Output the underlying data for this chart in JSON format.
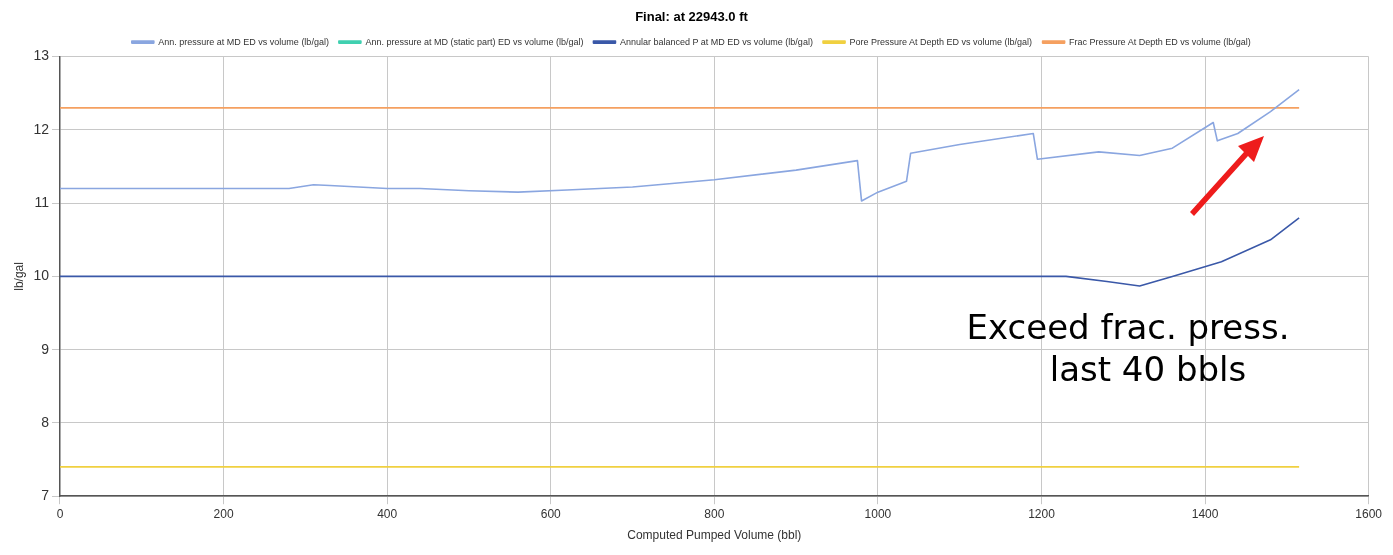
{
  "chart_data": {
    "type": "line",
    "title": "Final: at 22943.0 ft",
    "xlabel": "Computed Pumped Volume (bbl)",
    "ylabel": "lb/gal",
    "xlim": [
      0,
      1600
    ],
    "xticks": [
      0,
      200,
      400,
      600,
      800,
      1000,
      1200,
      1400,
      1600
    ],
    "ylim": [
      7,
      13
    ],
    "yticks": [
      7,
      8,
      9,
      10,
      11,
      12,
      13
    ],
    "grid": true,
    "legend": "top",
    "marker": "none",
    "line_style": "solid",
    "series": [
      {
        "name": "Ann. pressure at MD ED vs volume (lb/gal)",
        "color": "#8aa6e0",
        "x": [
          0,
          280,
          310,
          330,
          400,
          440,
          500,
          560,
          620,
          700,
          800,
          900,
          975,
          980,
          1000,
          1035,
          1040,
          1100,
          1190,
          1195,
          1270,
          1320,
          1360,
          1410,
          1415,
          1440,
          1480,
          1515
        ],
        "values": [
          11.2,
          11.2,
          11.25,
          11.24,
          11.2,
          11.2,
          11.17,
          11.15,
          11.18,
          11.22,
          11.32,
          11.45,
          11.58,
          11.03,
          11.15,
          11.3,
          11.68,
          11.8,
          11.95,
          11.6,
          11.7,
          11.65,
          11.75,
          12.1,
          11.85,
          11.95,
          12.25,
          12.55
        ]
      },
      {
        "name": "Ann. pressure at MD (static part) ED vs volume (lb/gal)",
        "color": "#40d0b0"
      },
      {
        "name": "Annular balanced P at MD ED vs volume (lb/gal)",
        "color": "#3a58a8",
        "x": [
          0,
          1230,
          1280,
          1320,
          1360,
          1420,
          1480,
          1515
        ],
        "values": [
          10,
          10,
          9.93,
          9.87,
          10.0,
          10.2,
          10.5,
          10.8
        ]
      },
      {
        "name": "Pore Pressure At Depth ED vs volume (lb/gal)",
        "color": "#f0d040",
        "x": [
          0,
          1515
        ],
        "values": [
          7.4,
          7.4
        ]
      },
      {
        "name": "Frac Pressure At Depth ED vs volume (lb/gal)",
        "color": "#f5a060",
        "x": [
          0,
          1515
        ],
        "values": [
          12.3,
          12.3
        ]
      }
    ],
    "annotations": [
      "Exceed frac. press. last 40 bbls"
    ]
  }
}
